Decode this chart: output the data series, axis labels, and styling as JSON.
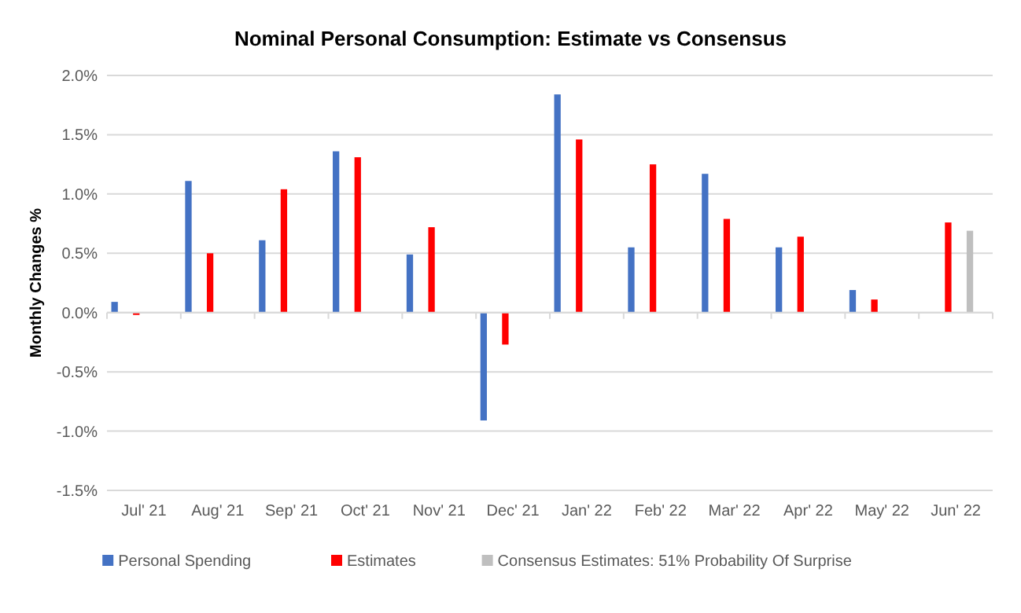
{
  "chart_data": {
    "type": "bar",
    "title": "Nominal Personal Consumption: Estimate vs Consensus",
    "ylabel": "Monthly Changes %",
    "categories": [
      "Jul' 21",
      "Aug' 21",
      "Sep' 21",
      "Oct' 21",
      "Nov' 21",
      "Dec' 21",
      "Jan' 22",
      "Feb' 22",
      "Mar' 22",
      "Apr' 22",
      "May' 22",
      "Jun' 22"
    ],
    "series": [
      {
        "name": "Personal Spending",
        "color": "#4472c4",
        "values": [
          0.09,
          1.11,
          0.61,
          1.36,
          0.49,
          -0.91,
          1.84,
          0.55,
          1.17,
          0.55,
          0.19,
          null
        ]
      },
      {
        "name": "Estimates",
        "color": "#ff0000",
        "values": [
          -0.02,
          0.5,
          1.04,
          1.31,
          0.72,
          -0.27,
          1.46,
          1.25,
          0.79,
          0.64,
          0.11,
          0.76
        ]
      },
      {
        "name": "Consensus Estimates: 51% Probability Of Surprise",
        "color": "#bfbfbf",
        "values": [
          null,
          null,
          null,
          null,
          null,
          null,
          null,
          null,
          null,
          null,
          null,
          0.69
        ]
      }
    ],
    "ylim": [
      -1.5,
      2.0
    ],
    "yticks": [
      {
        "value": -1.5,
        "label": "-1.5%"
      },
      {
        "value": -1.0,
        "label": "-1.0%"
      },
      {
        "value": -0.5,
        "label": "-0.5%"
      },
      {
        "value": 0,
        "label": "0.0%"
      },
      {
        "value": 0.5,
        "label": "0.5%"
      },
      {
        "value": 1.0,
        "label": "1.0%"
      },
      {
        "value": 1.5,
        "label": "1.5%"
      },
      {
        "value": 2.0,
        "label": "2.0%"
      }
    ],
    "grid": "y",
    "legend": "bottom"
  }
}
